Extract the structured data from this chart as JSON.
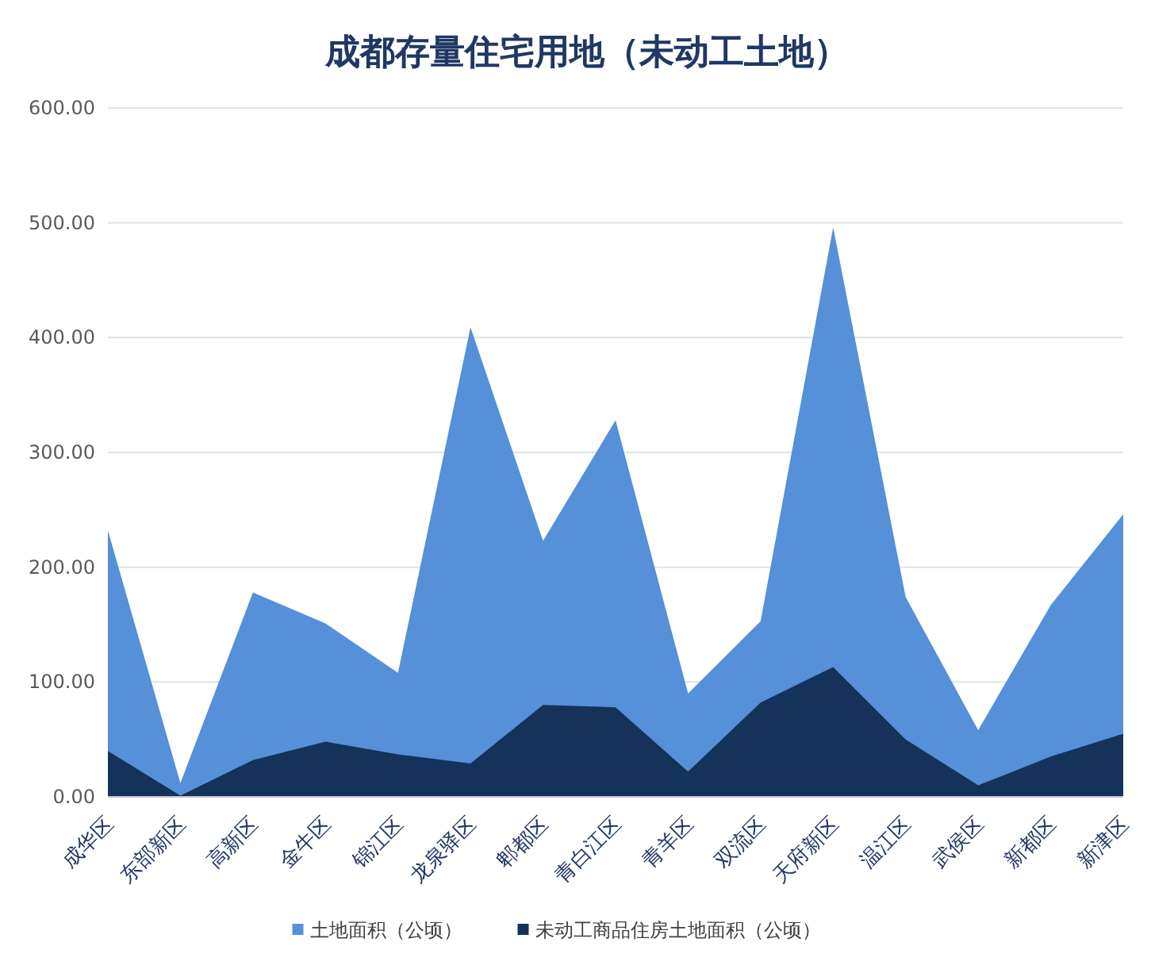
{
  "chart_data": {
    "type": "area",
    "title": "成都存量住宅用地（未动工土地）",
    "categories": [
      "成华区",
      "东部新区",
      "高新区",
      "金牛区",
      "锦江区",
      "龙泉驿区",
      "郫都区",
      "青白江区",
      "青羊区",
      "双流区",
      "天府新区",
      "温江区",
      "武侯区",
      "新都区",
      "新津区"
    ],
    "series": [
      {
        "name": "土地面积（公顷）",
        "color": "#5590d8",
        "values": [
          232,
          12,
          178,
          151,
          108,
          409,
          223,
          328,
          90,
          153,
          496,
          174,
          58,
          167,
          246
        ]
      },
      {
        "name": "未动工商品住房土地面积（公顷）",
        "color": "#14325a",
        "values": [
          40,
          1,
          32,
          48,
          37,
          29,
          80,
          78,
          22,
          82,
          113,
          50,
          10,
          35,
          55
        ]
      }
    ],
    "ylim": [
      0,
      600
    ],
    "yticks": [
      {
        "value": 0,
        "label": "0.00"
      },
      {
        "value": 100,
        "label": "100.00"
      },
      {
        "value": 200,
        "label": "200.00"
      },
      {
        "value": 300,
        "label": "300.00"
      },
      {
        "value": 400,
        "label": "400.00"
      },
      {
        "value": 500,
        "label": "500.00"
      },
      {
        "value": 600,
        "label": "600.00"
      }
    ],
    "grid": "y",
    "legend": "bottom"
  }
}
